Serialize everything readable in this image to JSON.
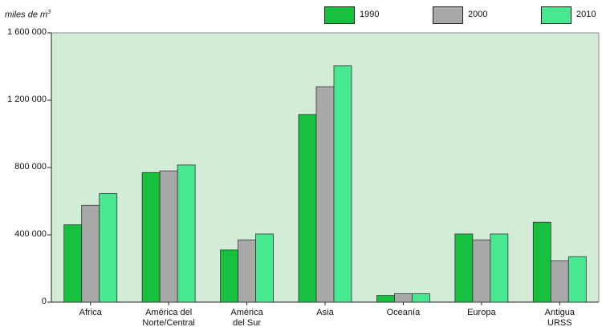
{
  "chart_data": {
    "type": "bar",
    "ylabel": "miles de m",
    "ylabel_sup": "3",
    "categories": [
      "Africa",
      "América del\nNorte/Central",
      "América\ndel Sur",
      "Asia",
      "Oceanía",
      "Europa",
      "Antigua\nURSS"
    ],
    "series": [
      {
        "name": "1990",
        "color": "#18c040",
        "values": [
          460000,
          770000,
          310000,
          1115000,
          40000,
          405000,
          475000
        ]
      },
      {
        "name": "2000",
        "color": "#a8a8a8",
        "values": [
          575000,
          780000,
          370000,
          1280000,
          50000,
          370000,
          245000
        ]
      },
      {
        "name": "2010",
        "color": "#48e890",
        "values": [
          645000,
          815000,
          405000,
          1405000,
          50000,
          405000,
          270000
        ]
      }
    ],
    "yticks": [
      {
        "value": 0,
        "label": "0"
      },
      {
        "value": 400000,
        "label": "400 000"
      },
      {
        "value": 800000,
        "label": "800 000"
      },
      {
        "value": 1200000,
        "label": "1 200 000"
      },
      {
        "value": 1600000,
        "label": "1 600 000"
      }
    ],
    "ylim": [
      0,
      1600000
    ],
    "grid": false,
    "legend": "top-right",
    "plot_background": "#d2ecd7",
    "bar_border_color": "#333333"
  }
}
